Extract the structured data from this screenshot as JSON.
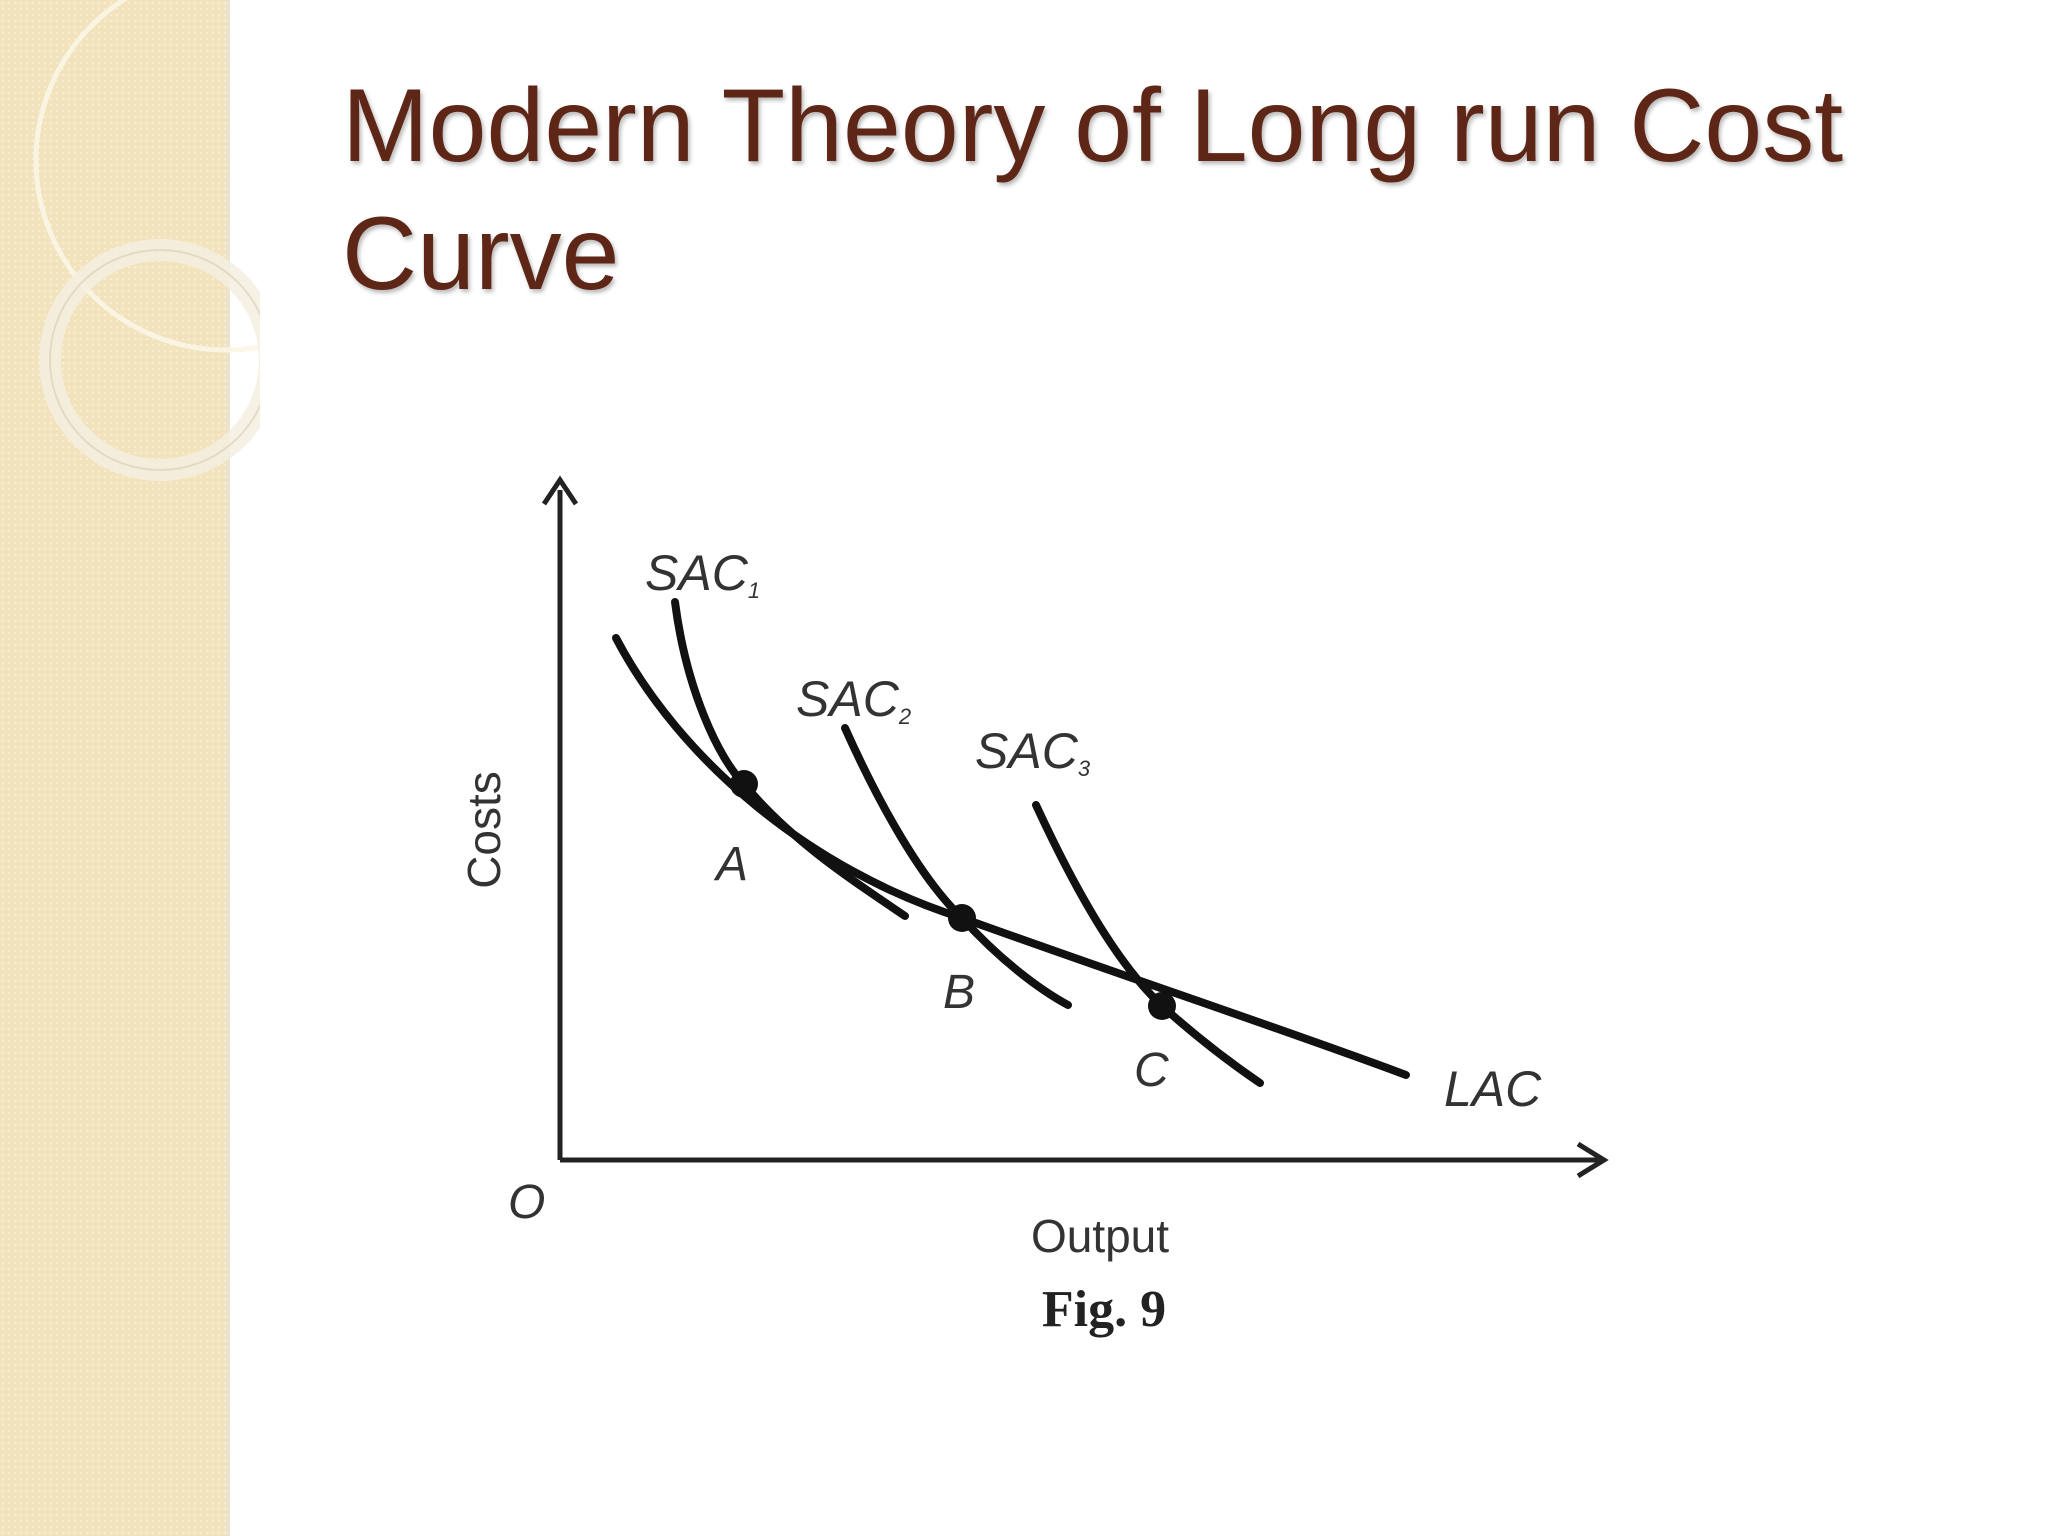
{
  "slide": {
    "title": "Modern Theory of Long run Cost Curve"
  },
  "figure": {
    "caption": "Fig. 9",
    "origin_label": "O",
    "xlabel": "Output",
    "ylabel": "Costs",
    "curves": {
      "sac1": "SAC",
      "sac1_sub": "1",
      "sac2": "SAC",
      "sac2_sub": "2",
      "sac3": "SAC",
      "sac3_sub": "3",
      "lac": "LAC"
    },
    "points": {
      "a": "A",
      "b": "B",
      "c": "C"
    }
  },
  "colors": {
    "title": "#5e2616",
    "sidebar": "#f2e3bd",
    "curves": "#111111"
  }
}
